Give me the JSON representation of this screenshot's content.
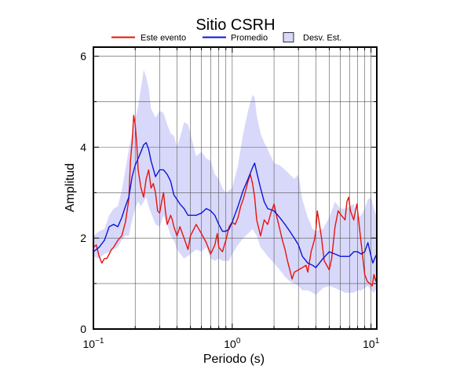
{
  "chart_data": {
    "type": "line",
    "title": "Sitio CSRH",
    "xlabel": "Periodo (s)",
    "ylabel": "Amplitud",
    "xscale": "log",
    "xlim": [
      0.1,
      11
    ],
    "ylim": [
      0,
      6.2
    ],
    "x_tick_labels": [
      {
        "base": "10",
        "exp": "−1",
        "value": 0.1
      },
      {
        "base": "10",
        "exp": "0",
        "value": 1
      },
      {
        "base": "10",
        "exp": "1",
        "value": 10
      }
    ],
    "y_ticks": [
      0,
      2,
      4,
      6
    ],
    "y_tick_labels": [
      "0",
      "2",
      "4",
      "6"
    ],
    "grid": true,
    "legend": {
      "placement": "top",
      "entries": [
        {
          "label": "Este evento",
          "kind": "line",
          "color": "#e8130d"
        },
        {
          "label": "Promedio",
          "kind": "line",
          "color": "#0b16d9"
        },
        {
          "label": "Desv. Est.",
          "kind": "band",
          "color": "#d8d8fa"
        }
      ]
    },
    "series": [
      {
        "name": "Este evento",
        "color": "#e8130d",
        "points": [
          [
            0.1,
            1.8
          ],
          [
            0.105,
            1.85
          ],
          [
            0.11,
            1.6
          ],
          [
            0.115,
            1.45
          ],
          [
            0.12,
            1.55
          ],
          [
            0.125,
            1.55
          ],
          [
            0.13,
            1.65
          ],
          [
            0.135,
            1.75
          ],
          [
            0.14,
            1.8
          ],
          [
            0.15,
            1.95
          ],
          [
            0.16,
            2.05
          ],
          [
            0.17,
            2.35
          ],
          [
            0.18,
            2.85
          ],
          [
            0.185,
            3.7
          ],
          [
            0.19,
            4.1
          ],
          [
            0.195,
            4.7
          ],
          [
            0.2,
            4.5
          ],
          [
            0.205,
            4.1
          ],
          [
            0.21,
            3.5
          ],
          [
            0.22,
            3.1
          ],
          [
            0.23,
            2.9
          ],
          [
            0.24,
            3.3
          ],
          [
            0.25,
            3.5
          ],
          [
            0.26,
            3.1
          ],
          [
            0.27,
            3.2
          ],
          [
            0.28,
            3.0
          ],
          [
            0.29,
            2.6
          ],
          [
            0.3,
            2.55
          ],
          [
            0.31,
            2.8
          ],
          [
            0.32,
            3.0
          ],
          [
            0.33,
            2.6
          ],
          [
            0.34,
            2.3
          ],
          [
            0.36,
            2.5
          ],
          [
            0.37,
            2.4
          ],
          [
            0.38,
            2.25
          ],
          [
            0.4,
            2.05
          ],
          [
            0.42,
            2.25
          ],
          [
            0.45,
            2.0
          ],
          [
            0.48,
            1.75
          ],
          [
            0.5,
            2.05
          ],
          [
            0.55,
            2.3
          ],
          [
            0.6,
            2.1
          ],
          [
            0.65,
            1.9
          ],
          [
            0.7,
            1.65
          ],
          [
            0.75,
            1.85
          ],
          [
            0.78,
            2.1
          ],
          [
            0.8,
            1.8
          ],
          [
            0.85,
            1.7
          ],
          [
            0.9,
            1.95
          ],
          [
            0.95,
            2.25
          ],
          [
            1.0,
            2.35
          ],
          [
            1.05,
            2.3
          ],
          [
            1.1,
            2.45
          ],
          [
            1.15,
            2.7
          ],
          [
            1.2,
            2.85
          ],
          [
            1.25,
            3.05
          ],
          [
            1.3,
            3.25
          ],
          [
            1.35,
            3.4
          ],
          [
            1.4,
            3.2
          ],
          [
            1.45,
            2.9
          ],
          [
            1.5,
            2.4
          ],
          [
            1.6,
            2.05
          ],
          [
            1.7,
            2.4
          ],
          [
            1.8,
            2.3
          ],
          [
            1.9,
            2.55
          ],
          [
            2.0,
            2.75
          ],
          [
            2.1,
            2.45
          ],
          [
            2.2,
            2.2
          ],
          [
            2.3,
            1.95
          ],
          [
            2.4,
            1.75
          ],
          [
            2.5,
            1.5
          ],
          [
            2.6,
            1.3
          ],
          [
            2.7,
            1.1
          ],
          [
            2.8,
            1.25
          ],
          [
            3.0,
            1.3
          ],
          [
            3.2,
            1.35
          ],
          [
            3.4,
            1.4
          ],
          [
            3.5,
            1.25
          ],
          [
            3.7,
            1.7
          ],
          [
            3.9,
            1.95
          ],
          [
            4.0,
            2.15
          ],
          [
            4.1,
            2.6
          ],
          [
            4.2,
            2.4
          ],
          [
            4.4,
            2.0
          ],
          [
            4.6,
            1.5
          ],
          [
            4.8,
            1.4
          ],
          [
            5.0,
            1.3
          ],
          [
            5.2,
            1.55
          ],
          [
            5.5,
            2.25
          ],
          [
            5.8,
            2.6
          ],
          [
            6.1,
            2.5
          ],
          [
            6.3,
            2.45
          ],
          [
            6.5,
            2.4
          ],
          [
            6.7,
            2.8
          ],
          [
            6.9,
            2.9
          ],
          [
            7.1,
            2.6
          ],
          [
            7.5,
            2.4
          ],
          [
            7.9,
            2.75
          ],
          [
            8.3,
            2.15
          ],
          [
            8.7,
            1.6
          ],
          [
            9.0,
            1.2
          ],
          [
            9.4,
            1.05
          ],
          [
            9.8,
            1.0
          ],
          [
            10.2,
            0.95
          ],
          [
            10.5,
            1.2
          ],
          [
            10.8,
            1.05
          ],
          [
            11.0,
            1.15
          ]
        ]
      },
      {
        "name": "Promedio",
        "color": "#0b16d9",
        "points": [
          [
            0.1,
            1.7
          ],
          [
            0.11,
            1.8
          ],
          [
            0.12,
            1.95
          ],
          [
            0.13,
            2.25
          ],
          [
            0.14,
            2.3
          ],
          [
            0.15,
            2.25
          ],
          [
            0.16,
            2.45
          ],
          [
            0.17,
            2.7
          ],
          [
            0.18,
            2.9
          ],
          [
            0.19,
            3.35
          ],
          [
            0.2,
            3.6
          ],
          [
            0.21,
            3.75
          ],
          [
            0.22,
            3.9
          ],
          [
            0.23,
            4.05
          ],
          [
            0.24,
            4.1
          ],
          [
            0.25,
            3.95
          ],
          [
            0.26,
            3.7
          ],
          [
            0.28,
            3.35
          ],
          [
            0.3,
            3.5
          ],
          [
            0.32,
            3.5
          ],
          [
            0.34,
            3.4
          ],
          [
            0.36,
            3.25
          ],
          [
            0.38,
            2.95
          ],
          [
            0.4,
            2.85
          ],
          [
            0.42,
            2.75
          ],
          [
            0.45,
            2.65
          ],
          [
            0.48,
            2.5
          ],
          [
            0.5,
            2.5
          ],
          [
            0.55,
            2.5
          ],
          [
            0.6,
            2.55
          ],
          [
            0.65,
            2.65
          ],
          [
            0.7,
            2.6
          ],
          [
            0.75,
            2.5
          ],
          [
            0.8,
            2.3
          ],
          [
            0.85,
            2.15
          ],
          [
            0.9,
            2.15
          ],
          [
            0.95,
            2.2
          ],
          [
            1.0,
            2.35
          ],
          [
            1.1,
            2.7
          ],
          [
            1.2,
            3.05
          ],
          [
            1.3,
            3.3
          ],
          [
            1.4,
            3.55
          ],
          [
            1.45,
            3.65
          ],
          [
            1.5,
            3.45
          ],
          [
            1.6,
            3.1
          ],
          [
            1.7,
            2.8
          ],
          [
            1.8,
            2.65
          ],
          [
            2.0,
            2.6
          ],
          [
            2.2,
            2.45
          ],
          [
            2.4,
            2.3
          ],
          [
            2.6,
            2.15
          ],
          [
            2.8,
            2.0
          ],
          [
            3.0,
            1.85
          ],
          [
            3.2,
            1.6
          ],
          [
            3.5,
            1.45
          ],
          [
            3.8,
            1.4
          ],
          [
            4.0,
            1.35
          ],
          [
            4.5,
            1.55
          ],
          [
            5.0,
            1.7
          ],
          [
            5.5,
            1.65
          ],
          [
            6.0,
            1.6
          ],
          [
            6.5,
            1.6
          ],
          [
            7.0,
            1.6
          ],
          [
            7.5,
            1.7
          ],
          [
            8.0,
            1.7
          ],
          [
            8.5,
            1.65
          ],
          [
            9.0,
            1.7
          ],
          [
            9.5,
            1.9
          ],
          [
            10.0,
            1.6
          ],
          [
            10.3,
            1.45
          ],
          [
            10.6,
            1.55
          ],
          [
            11.0,
            1.65
          ]
        ]
      }
    ],
    "std_band": {
      "name": "Desv. Est.",
      "color": "#d8d8fa",
      "upper": [
        [
          0.1,
          2.05
        ],
        [
          0.11,
          2.15
        ],
        [
          0.12,
          2.2
        ],
        [
          0.13,
          2.5
        ],
        [
          0.14,
          2.65
        ],
        [
          0.15,
          2.7
        ],
        [
          0.16,
          3.05
        ],
        [
          0.17,
          3.5
        ],
        [
          0.18,
          3.95
        ],
        [
          0.19,
          4.3
        ],
        [
          0.2,
          4.6
        ],
        [
          0.21,
          4.9
        ],
        [
          0.22,
          5.3
        ],
        [
          0.23,
          5.7
        ],
        [
          0.24,
          5.55
        ],
        [
          0.25,
          5.3
        ],
        [
          0.26,
          4.85
        ],
        [
          0.28,
          4.65
        ],
        [
          0.3,
          4.8
        ],
        [
          0.32,
          4.75
        ],
        [
          0.34,
          4.5
        ],
        [
          0.36,
          4.3
        ],
        [
          0.38,
          4.25
        ],
        [
          0.4,
          4.0
        ],
        [
          0.42,
          4.2
        ],
        [
          0.45,
          4.55
        ],
        [
          0.48,
          4.5
        ],
        [
          0.5,
          4.3
        ],
        [
          0.55,
          3.8
        ],
        [
          0.6,
          3.9
        ],
        [
          0.65,
          3.75
        ],
        [
          0.7,
          3.7
        ],
        [
          0.75,
          3.4
        ],
        [
          0.8,
          3.3
        ],
        [
          0.85,
          3.1
        ],
        [
          0.9,
          3.0
        ],
        [
          1.0,
          3.1
        ],
        [
          1.1,
          3.6
        ],
        [
          1.2,
          4.3
        ],
        [
          1.3,
          4.8
        ],
        [
          1.4,
          5.15
        ],
        [
          1.45,
          5.1
        ],
        [
          1.5,
          4.7
        ],
        [
          1.6,
          4.3
        ],
        [
          1.7,
          4.1
        ],
        [
          1.8,
          3.95
        ],
        [
          2.0,
          3.65
        ],
        [
          2.2,
          3.6
        ],
        [
          2.4,
          3.5
        ],
        [
          2.6,
          3.4
        ],
        [
          2.8,
          3.3
        ],
        [
          3.0,
          3.4
        ],
        [
          3.2,
          2.85
        ],
        [
          3.5,
          2.45
        ],
        [
          3.8,
          2.2
        ],
        [
          4.0,
          2.15
        ],
        [
          4.5,
          2.2
        ],
        [
          5.0,
          2.45
        ],
        [
          5.5,
          2.8
        ],
        [
          6.0,
          2.65
        ],
        [
          6.5,
          2.65
        ],
        [
          7.0,
          2.7
        ],
        [
          7.5,
          2.75
        ],
        [
          8.0,
          2.45
        ],
        [
          8.5,
          2.5
        ],
        [
          9.0,
          2.65
        ],
        [
          9.5,
          2.85
        ],
        [
          10.0,
          2.9
        ],
        [
          10.5,
          2.65
        ],
        [
          11.0,
          2.45
        ]
      ],
      "lower": [
        [
          0.1,
          1.6
        ],
        [
          0.11,
          1.55
        ],
        [
          0.12,
          1.65
        ],
        [
          0.13,
          1.7
        ],
        [
          0.14,
          1.75
        ],
        [
          0.15,
          1.8
        ],
        [
          0.16,
          1.95
        ],
        [
          0.17,
          2.05
        ],
        [
          0.18,
          2.05
        ],
        [
          0.19,
          2.4
        ],
        [
          0.2,
          2.65
        ],
        [
          0.21,
          2.8
        ],
        [
          0.22,
          2.7
        ],
        [
          0.23,
          2.8
        ],
        [
          0.24,
          2.9
        ],
        [
          0.25,
          2.7
        ],
        [
          0.26,
          2.55
        ],
        [
          0.28,
          2.3
        ],
        [
          0.3,
          2.25
        ],
        [
          0.32,
          2.5
        ],
        [
          0.34,
          2.3
        ],
        [
          0.36,
          2.05
        ],
        [
          0.38,
          1.95
        ],
        [
          0.4,
          1.75
        ],
        [
          0.45,
          1.55
        ],
        [
          0.5,
          1.65
        ],
        [
          0.55,
          1.75
        ],
        [
          0.6,
          1.7
        ],
        [
          0.65,
          1.8
        ],
        [
          0.7,
          1.55
        ],
        [
          0.75,
          1.5
        ],
        [
          0.8,
          1.55
        ],
        [
          0.85,
          1.5
        ],
        [
          0.9,
          1.5
        ],
        [
          0.95,
          1.5
        ],
        [
          1.0,
          1.65
        ],
        [
          1.1,
          1.85
        ],
        [
          1.2,
          2.0
        ],
        [
          1.3,
          2.1
        ],
        [
          1.4,
          2.2
        ],
        [
          1.5,
          2.05
        ],
        [
          1.6,
          1.8
        ],
        [
          1.7,
          1.7
        ],
        [
          1.8,
          1.6
        ],
        [
          2.0,
          1.45
        ],
        [
          2.2,
          1.3
        ],
        [
          2.4,
          1.15
        ],
        [
          2.6,
          1.05
        ],
        [
          2.8,
          1.0
        ],
        [
          3.0,
          0.95
        ],
        [
          3.2,
          0.85
        ],
        [
          3.5,
          0.85
        ],
        [
          3.8,
          0.8
        ],
        [
          4.0,
          0.75
        ],
        [
          4.5,
          0.9
        ],
        [
          5.0,
          0.95
        ],
        [
          5.5,
          0.9
        ],
        [
          6.0,
          0.85
        ],
        [
          6.5,
          0.8
        ],
        [
          7.0,
          0.8
        ],
        [
          7.5,
          0.8
        ],
        [
          8.0,
          0.85
        ],
        [
          8.5,
          0.85
        ],
        [
          9.0,
          0.9
        ],
        [
          9.5,
          0.95
        ],
        [
          10.0,
          0.85
        ],
        [
          10.5,
          0.8
        ],
        [
          11.0,
          0.9
        ]
      ]
    }
  }
}
